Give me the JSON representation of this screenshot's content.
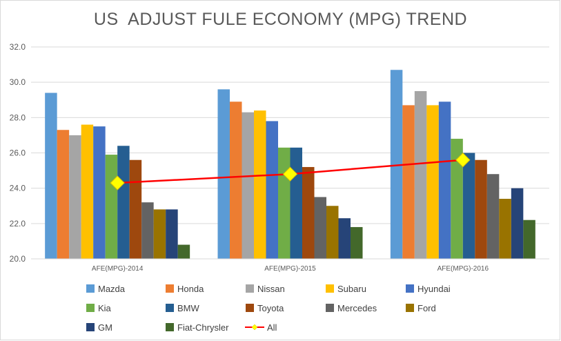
{
  "chart_data": {
    "type": "bar",
    "title": "US  ADJUST FULE ECONOMY (MPG) TREND",
    "xlabel": "",
    "ylabel": "",
    "ylim": [
      20,
      32
    ],
    "yticks": [
      "20.0",
      "22.0",
      "24.0",
      "26.0",
      "28.0",
      "30.0",
      "32.0"
    ],
    "categories": [
      "AFE(MPG)-2014",
      "AFE(MPG)-2015",
      "AFE(MPG)-2016"
    ],
    "grid": true,
    "legend_position": "bottom",
    "series": [
      {
        "name": "Mazda",
        "color": "#5B9BD5",
        "values": [
          29.4,
          29.6,
          30.7
        ]
      },
      {
        "name": "Honda",
        "color": "#ED7D31",
        "values": [
          27.3,
          28.9,
          28.7
        ]
      },
      {
        "name": "Nissan",
        "color": "#A5A5A5",
        "values": [
          27.0,
          28.3,
          29.5
        ]
      },
      {
        "name": "Subaru",
        "color": "#FFC000",
        "values": [
          27.6,
          28.4,
          28.7
        ]
      },
      {
        "name": "Hyundai",
        "color": "#4472C4",
        "values": [
          27.5,
          27.8,
          28.9
        ]
      },
      {
        "name": "Kia",
        "color": "#70AD47",
        "values": [
          25.9,
          26.3,
          26.8
        ]
      },
      {
        "name": "BMW",
        "color": "#255E91",
        "values": [
          26.4,
          26.3,
          26.0
        ]
      },
      {
        "name": "Toyota",
        "color": "#9E480E",
        "values": [
          25.6,
          25.2,
          25.6
        ]
      },
      {
        "name": "Mercedes",
        "color": "#636363",
        "values": [
          23.2,
          23.5,
          24.8
        ]
      },
      {
        "name": "Ford",
        "color": "#997300",
        "values": [
          22.8,
          23.0,
          23.4
        ]
      },
      {
        "name": "GM",
        "color": "#264478",
        "values": [
          22.8,
          22.3,
          24.0
        ]
      },
      {
        "name": "Fiat-Chrysler",
        "color": "#43682B",
        "values": [
          20.8,
          21.8,
          22.2
        ]
      }
    ],
    "line_series": {
      "name": "All",
      "line_color": "#FF0000",
      "marker_color": "#FFFF00",
      "marker": "diamond",
      "values": [
        24.3,
        24.8,
        25.6
      ]
    }
  }
}
